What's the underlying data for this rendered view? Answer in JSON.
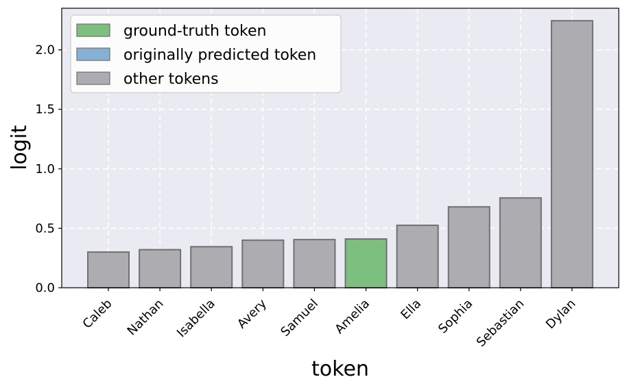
{
  "chart_data": {
    "type": "bar",
    "xlabel": "token",
    "ylabel": "logit",
    "ylim": [
      0,
      2.35
    ],
    "yticks": [
      "0.0",
      "0.5",
      "1.0",
      "1.5",
      "2.0"
    ],
    "categories": [
      "Caleb",
      "Nathan",
      "Isabella",
      "Avery",
      "Samuel",
      "Amelia",
      "Ella",
      "Sophia",
      "Sebastian",
      "Dylan"
    ],
    "values": [
      0.3,
      0.32,
      0.345,
      0.4,
      0.405,
      0.41,
      0.525,
      0.68,
      0.755,
      2.245
    ],
    "bar_groups": [
      "other",
      "other",
      "other",
      "other",
      "other",
      "ground_truth",
      "other",
      "other",
      "other",
      "other"
    ],
    "grid": true,
    "legend": {
      "position": "top-left",
      "entries": [
        {
          "key": "ground_truth",
          "label": "ground-truth token",
          "color": "#7dbf7f"
        },
        {
          "key": "predicted",
          "label": "originally predicted token",
          "color": "#86b0d4"
        },
        {
          "key": "other",
          "label": "other tokens",
          "color": "#adacb0"
        }
      ]
    },
    "colors": {
      "plot_background": "#eaeaf2",
      "bar_edge": "#707070",
      "grid": "#ffffff"
    }
  }
}
